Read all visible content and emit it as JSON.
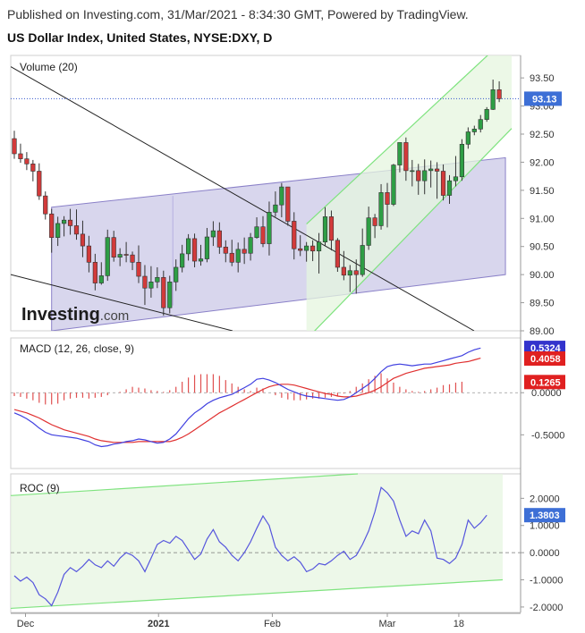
{
  "header": {
    "published": "Published on Investing.com, 31/Mar/2021 - 8:34:30 GMT, Powered by TradingView.",
    "title": "US Dollar Index, United States, NYSE:DXY, D"
  },
  "logo": {
    "main": "Investing",
    "suffix": ".com"
  },
  "colors": {
    "up": "#2e9e45",
    "down": "#d23a3a",
    "macd": "#4040e0",
    "signal": "#e03030",
    "hist": "#e05050",
    "roc": "#5555dd",
    "band": "#a9a3d6",
    "channel": "#e6f5df"
  },
  "chart_data": [
    {
      "type": "candlestick",
      "panel": "price",
      "legend": "Volume (20)",
      "x_ticks": [
        "Dec",
        "2021",
        "Feb",
        "Mar",
        "18"
      ],
      "y_ticks": [
        "89.00",
        "89.50",
        "90.00",
        "90.50",
        "91.00",
        "91.50",
        "92.00",
        "92.50",
        "93.00",
        "93.50"
      ],
      "ylim": [
        89.0,
        93.9
      ],
      "last_value": "93.13",
      "ohlc": [
        [
          92.42,
          92.56,
          92.06,
          92.15
        ],
        [
          92.15,
          92.33,
          91.99,
          92.06
        ],
        [
          92.06,
          92.18,
          91.86,
          91.97
        ],
        [
          91.97,
          92.04,
          91.66,
          91.84
        ],
        [
          91.84,
          91.98,
          91.33,
          91.4
        ],
        [
          91.4,
          91.48,
          90.98,
          91.08
        ],
        [
          91.08,
          91.17,
          90.39,
          90.66
        ],
        [
          90.66,
          91.03,
          90.51,
          90.91
        ],
        [
          90.91,
          91.04,
          90.68,
          90.97
        ],
        [
          90.97,
          91.17,
          90.71,
          90.87
        ],
        [
          90.87,
          91.16,
          90.62,
          90.72
        ],
        [
          90.72,
          90.96,
          90.31,
          90.51
        ],
        [
          90.51,
          90.69,
          90.04,
          90.22
        ],
        [
          90.22,
          90.37,
          89.72,
          89.85
        ],
        [
          89.85,
          90.22,
          89.82,
          89.98
        ],
        [
          89.98,
          90.8,
          89.89,
          90.66
        ],
        [
          90.66,
          90.78,
          90.23,
          90.31
        ],
        [
          90.31,
          90.47,
          90.15,
          90.36
        ],
        [
          90.36,
          90.58,
          90.22,
          90.35
        ],
        [
          90.35,
          90.41,
          90.08,
          90.22
        ],
        [
          90.22,
          90.52,
          89.85,
          89.97
        ],
        [
          89.97,
          90.17,
          89.46,
          89.76
        ],
        [
          89.76,
          90.15,
          89.59,
          89.87
        ],
        [
          89.87,
          90.13,
          89.76,
          89.95
        ],
        [
          89.95,
          90.07,
          89.27,
          89.41
        ],
        [
          89.41,
          89.98,
          89.31,
          89.87
        ],
        [
          89.87,
          90.27,
          89.71,
          90.13
        ],
        [
          90.13,
          90.53,
          90.04,
          90.37
        ],
        [
          90.37,
          90.72,
          90.25,
          90.64
        ],
        [
          90.64,
          90.73,
          90.13,
          90.24
        ],
        [
          90.24,
          90.53,
          90.16,
          90.28
        ],
        [
          90.28,
          90.83,
          90.22,
          90.67
        ],
        [
          90.67,
          90.95,
          90.51,
          90.78
        ],
        [
          90.78,
          90.93,
          90.37,
          90.49
        ],
        [
          90.49,
          90.61,
          90.22,
          90.38
        ],
        [
          90.38,
          90.62,
          90.15,
          90.22
        ],
        [
          90.22,
          90.57,
          90.04,
          90.45
        ],
        [
          90.45,
          90.66,
          90.19,
          90.38
        ],
        [
          90.38,
          90.74,
          90.25,
          90.66
        ],
        [
          90.66,
          91.02,
          90.64,
          90.85
        ],
        [
          90.85,
          91.04,
          90.49,
          90.55
        ],
        [
          90.55,
          91.3,
          90.34,
          91.11
        ],
        [
          91.11,
          91.48,
          91.03,
          91.24
        ],
        [
          91.24,
          91.63,
          91.02,
          91.56
        ],
        [
          91.56,
          91.56,
          90.87,
          90.95
        ],
        [
          90.95,
          91.11,
          90.27,
          90.46
        ],
        [
          90.46,
          90.7,
          90.33,
          90.43
        ],
        [
          90.43,
          90.58,
          90.23,
          90.51
        ],
        [
          90.51,
          90.61,
          90.24,
          90.42
        ],
        [
          90.42,
          90.74,
          90.02,
          90.58
        ],
        [
          90.58,
          91.2,
          90.51,
          91.03
        ],
        [
          91.03,
          91.14,
          90.43,
          90.61
        ],
        [
          90.61,
          90.65,
          90.05,
          90.13
        ],
        [
          90.13,
          90.42,
          89.9,
          89.99
        ],
        [
          89.99,
          90.17,
          89.69,
          90.07
        ],
        [
          90.07,
          90.27,
          89.66,
          90.0
        ],
        [
          90.0,
          90.82,
          89.96,
          90.52
        ],
        [
          90.52,
          91.21,
          90.44,
          91.01
        ],
        [
          91.01,
          91.08,
          90.65,
          90.87
        ],
        [
          90.87,
          91.61,
          90.8,
          91.46
        ],
        [
          91.46,
          91.63,
          90.84,
          91.25
        ],
        [
          91.25,
          91.97,
          91.22,
          91.95
        ],
        [
          91.95,
          92.34,
          91.82,
          92.35
        ],
        [
          92.35,
          92.44,
          91.67,
          91.85
        ],
        [
          91.85,
          92.04,
          91.57,
          91.85
        ],
        [
          91.85,
          91.97,
          91.42,
          91.67
        ],
        [
          91.67,
          92.05,
          91.43,
          91.85
        ],
        [
          91.85,
          92.03,
          91.55,
          91.88
        ],
        [
          91.88,
          92.0,
          91.35,
          91.84
        ],
        [
          91.84,
          91.96,
          91.32,
          91.41
        ],
        [
          91.41,
          91.77,
          91.26,
          91.67
        ],
        [
          91.67,
          92.11,
          91.57,
          91.74
        ],
        [
          91.74,
          92.41,
          91.67,
          92.32
        ],
        [
          92.32,
          92.62,
          92.24,
          92.54
        ],
        [
          92.54,
          92.65,
          92.48,
          92.59
        ],
        [
          92.59,
          92.84,
          92.53,
          92.76
        ],
        [
          92.76,
          92.98,
          92.72,
          92.94
        ],
        [
          92.94,
          93.47,
          92.93,
          93.29
        ],
        [
          93.29,
          93.44,
          93.07,
          93.13
        ]
      ]
    },
    {
      "type": "line",
      "panel": "macd",
      "legend": "MACD (12, 26, close, 9)",
      "y_ticks": [
        "0.0000",
        "-0.5000"
      ],
      "ylim": [
        -0.9,
        0.65
      ],
      "labels": {
        "macd": "0.5324",
        "signal": "0.4058",
        "histogram": "0.1265"
      },
      "macd": [
        -0.24,
        -0.27,
        -0.31,
        -0.36,
        -0.42,
        -0.47,
        -0.5,
        -0.51,
        -0.52,
        -0.53,
        -0.54,
        -0.56,
        -0.58,
        -0.62,
        -0.64,
        -0.63,
        -0.61,
        -0.6,
        -0.58,
        -0.57,
        -0.55,
        -0.56,
        -0.58,
        -0.6,
        -0.59,
        -0.55,
        -0.49,
        -0.4,
        -0.31,
        -0.24,
        -0.19,
        -0.13,
        -0.09,
        -0.06,
        -0.04,
        -0.02,
        0.02,
        0.06,
        0.1,
        0.16,
        0.17,
        0.15,
        0.12,
        0.08,
        0.04,
        0.01,
        -0.02,
        -0.04,
        -0.05,
        -0.06,
        -0.07,
        -0.08,
        -0.09,
        -0.08,
        -0.05,
        0.0,
        0.05,
        0.1,
        0.17,
        0.25,
        0.31,
        0.33,
        0.34,
        0.33,
        0.32,
        0.33,
        0.34,
        0.34,
        0.36,
        0.38,
        0.4,
        0.42,
        0.44,
        0.48,
        0.51,
        0.53
      ],
      "signal": [
        -0.2,
        -0.22,
        -0.24,
        -0.27,
        -0.3,
        -0.34,
        -0.38,
        -0.41,
        -0.44,
        -0.46,
        -0.48,
        -0.5,
        -0.52,
        -0.55,
        -0.57,
        -0.58,
        -0.59,
        -0.59,
        -0.59,
        -0.59,
        -0.58,
        -0.58,
        -0.58,
        -0.58,
        -0.58,
        -0.58,
        -0.56,
        -0.53,
        -0.49,
        -0.44,
        -0.39,
        -0.34,
        -0.29,
        -0.24,
        -0.2,
        -0.16,
        -0.12,
        -0.08,
        -0.04,
        0.0,
        0.04,
        0.07,
        0.09,
        0.1,
        0.1,
        0.09,
        0.07,
        0.05,
        0.03,
        0.01,
        -0.01,
        -0.02,
        -0.04,
        -0.05,
        -0.05,
        -0.04,
        -0.02,
        0.0,
        0.03,
        0.07,
        0.12,
        0.17,
        0.2,
        0.23,
        0.25,
        0.27,
        0.29,
        0.3,
        0.31,
        0.32,
        0.33,
        0.35,
        0.36,
        0.37,
        0.39,
        0.41
      ],
      "histogram": [
        -0.04,
        -0.05,
        -0.07,
        -0.09,
        -0.12,
        -0.14,
        -0.14,
        -0.13,
        -0.09,
        -0.07,
        -0.06,
        -0.06,
        -0.07,
        -0.06,
        -0.05,
        -0.03,
        0.0,
        0.01,
        0.04,
        0.07,
        0.06,
        0.05,
        0.03,
        0.02,
        0.01,
        0.03,
        0.07,
        0.13,
        0.18,
        0.21,
        0.22,
        0.22,
        0.22,
        0.2,
        0.15,
        0.11,
        0.07,
        0.04,
        0.02,
        0.06,
        0.05,
        0.0,
        -0.03,
        -0.06,
        -0.08,
        -0.09,
        -0.09,
        -0.08,
        -0.07,
        -0.07,
        -0.06,
        -0.05,
        -0.04,
        -0.01,
        0.02,
        0.07,
        0.11,
        0.16,
        0.2,
        0.23,
        0.17,
        0.12,
        0.07,
        0.04,
        0.02,
        0.01,
        0.02,
        0.04,
        0.06,
        0.09,
        0.1,
        0.12,
        0.13
      ]
    },
    {
      "type": "line",
      "panel": "roc",
      "legend": "ROC (9)",
      "y_ticks": [
        "2.0000",
        "1.0000",
        "0.0000",
        "-1.0000",
        "-2.0000"
      ],
      "ylim": [
        -2.2,
        2.9
      ],
      "last_value": "1.3803",
      "values": [
        -0.85,
        -1.05,
        -0.9,
        -1.1,
        -1.55,
        -1.7,
        -1.95,
        -1.45,
        -0.8,
        -0.55,
        -0.7,
        -0.5,
        -0.25,
        -0.45,
        -0.55,
        -0.3,
        -0.5,
        -0.2,
        0.0,
        -0.1,
        -0.3,
        -0.7,
        -0.2,
        0.3,
        0.45,
        0.35,
        0.6,
        0.45,
        0.1,
        -0.25,
        -0.05,
        0.5,
        0.85,
        0.4,
        0.2,
        -0.1,
        -0.3,
        0.0,
        0.4,
        0.9,
        1.35,
        1.0,
        0.2,
        -0.1,
        -0.3,
        -0.15,
        -0.35,
        -0.7,
        -0.6,
        -0.4,
        -0.45,
        -0.3,
        -0.1,
        0.05,
        -0.25,
        -0.1,
        0.3,
        0.8,
        1.5,
        2.4,
        2.2,
        1.9,
        1.2,
        0.6,
        0.8,
        0.7,
        1.2,
        0.8,
        -0.2,
        -0.25,
        -0.4,
        -0.2,
        0.3,
        1.2,
        0.9,
        1.1,
        1.38
      ]
    }
  ]
}
